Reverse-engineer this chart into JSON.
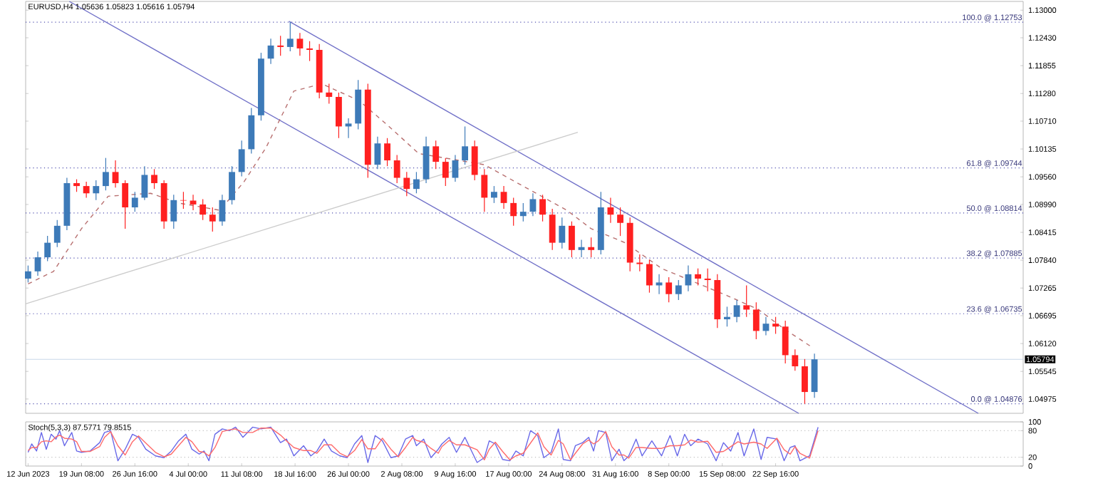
{
  "chart_data": [
    {
      "type": "candlestick",
      "title": "EURUSD,H4  1.05636 1.05823 1.05616 1.05794",
      "x": [
        "2023-06-12T00:00",
        "2023-06-13T08:00",
        "2023-06-14T16:00",
        "2023-06-16T00:00",
        "2023-06-17T08:00",
        "2023-06-18T16:00",
        "2023-06-20T00:00",
        "2023-06-21T08:00",
        "2023-06-22T16:00",
        "2023-06-24T00:00",
        "2023-06-25T08:00",
        "2023-06-26T16:00",
        "2023-06-28T00:00",
        "2023-06-29T08:00",
        "2023-06-30T16:00",
        "2023-07-02T00:00",
        "2023-07-03T08:00",
        "2023-07-04T16:00",
        "2023-07-06T00:00",
        "2023-07-07T08:00",
        "2023-07-08T16:00",
        "2023-07-10T00:00",
        "2023-07-11T08:00",
        "2023-07-12T16:00",
        "2023-07-14T00:00",
        "2023-07-15T08:00",
        "2023-07-16T16:00",
        "2023-07-18T00:00",
        "2023-07-19T08:00",
        "2023-07-20T16:00",
        "2023-07-22T00:00",
        "2023-07-23T08:00",
        "2023-07-24T16:00",
        "2023-07-26T00:00",
        "2023-07-27T08:00",
        "2023-07-28T16:00",
        "2023-07-30T00:00",
        "2023-07-31T08:00",
        "2023-08-01T16:00",
        "2023-08-03T00:00",
        "2023-08-04T08:00",
        "2023-08-05T16:00",
        "2023-08-07T00:00",
        "2023-08-08T08:00",
        "2023-08-09T16:00",
        "2023-08-11T00:00",
        "2023-08-12T08:00",
        "2023-08-13T16:00",
        "2023-08-15T00:00",
        "2023-08-16T08:00",
        "2023-08-17T16:00",
        "2023-08-19T00:00",
        "2023-08-20T08:00",
        "2023-08-21T16:00",
        "2023-08-23T00:00",
        "2023-08-24T08:00",
        "2023-08-25T16:00",
        "2023-08-27T00:00",
        "2023-08-28T08:00",
        "2023-08-29T16:00",
        "2023-08-31T00:00",
        "2023-09-01T08:00",
        "2023-09-02T16:00",
        "2023-09-04T00:00",
        "2023-09-05T08:00",
        "2023-09-06T16:00",
        "2023-09-08T00:00",
        "2023-09-09T08:00",
        "2023-09-10T16:00",
        "2023-09-12T00:00",
        "2023-09-13T08:00",
        "2023-09-14T16:00",
        "2023-09-16T00:00",
        "2023-09-17T08:00",
        "2023-09-18T16:00",
        "2023-09-20T00:00",
        "2023-09-21T08:00",
        "2023-09-22T16:00",
        "2023-09-24T00:00",
        "2023-09-25T08:00",
        "2023-09-26T16:00",
        "2023-09-28T00:00"
      ],
      "ohlc": [
        [
          1.0746,
          1.0773,
          1.0738,
          1.0761
        ],
        [
          1.0761,
          1.0802,
          1.0752,
          1.079
        ],
        [
          1.079,
          1.0834,
          1.0782,
          1.082
        ],
        [
          1.082,
          1.0867,
          1.0811,
          1.0855
        ],
        [
          1.0855,
          1.0954,
          1.0846,
          1.0943
        ],
        [
          1.0943,
          1.0951,
          1.0925,
          1.0937
        ],
        [
          1.0937,
          1.0946,
          1.0913,
          1.0922
        ],
        [
          1.0922,
          1.0949,
          1.0908,
          1.0937
        ],
        [
          1.0937,
          1.0995,
          1.0928,
          1.0966
        ],
        [
          1.0966,
          1.099,
          1.0934,
          1.0943
        ],
        [
          1.0943,
          1.0949,
          1.0849,
          1.0893
        ],
        [
          1.0893,
          1.0925,
          1.0884,
          1.0913
        ],
        [
          1.0913,
          1.0978,
          1.0908,
          1.096
        ],
        [
          1.096,
          1.0972,
          1.0931,
          1.0943
        ],
        [
          1.0943,
          1.0949,
          1.0849,
          1.0864
        ],
        [
          1.0864,
          1.0919,
          1.0849,
          1.0908
        ],
        [
          1.0908,
          1.0925,
          1.089,
          1.0907
        ],
        [
          1.0907,
          1.0919,
          1.0887,
          1.0899
        ],
        [
          1.0899,
          1.091,
          1.0867,
          1.0878
        ],
        [
          1.0878,
          1.0893,
          1.0843,
          1.0864
        ],
        [
          1.0864,
          1.0919,
          1.0855,
          1.0908
        ],
        [
          1.0908,
          1.0978,
          1.0899,
          1.0966
        ],
        [
          1.0966,
          1.1031,
          1.0957,
          1.1013
        ],
        [
          1.1013,
          1.1098,
          1.1004,
          1.1083
        ],
        [
          1.1083,
          1.1212,
          1.1072,
          1.12
        ],
        [
          1.12,
          1.1241,
          1.1189,
          1.1227
        ],
        [
          1.1227,
          1.1247,
          1.1206,
          1.1224
        ],
        [
          1.1224,
          1.12753,
          1.1215,
          1.1241
        ],
        [
          1.1241,
          1.1253,
          1.1206,
          1.1221
        ],
        [
          1.1221,
          1.1236,
          1.1195,
          1.1218
        ],
        [
          1.1218,
          1.123,
          1.1118,
          1.113
        ],
        [
          1.113,
          1.1148,
          1.1107,
          1.1121
        ],
        [
          1.1121,
          1.113,
          1.1036,
          1.106
        ],
        [
          1.106,
          1.1077,
          1.1036,
          1.1066
        ],
        [
          1.1066,
          1.1156,
          1.1054,
          1.1136
        ],
        [
          1.1136,
          1.1148,
          1.0954,
          1.0981
        ],
        [
          1.0981,
          1.1039,
          1.0972,
          1.1025
        ],
        [
          1.1025,
          1.1036,
          1.0978,
          1.099
        ],
        [
          1.099,
          1.1001,
          1.0943,
          1.0954
        ],
        [
          1.0954,
          1.0966,
          1.0916,
          1.0931
        ],
        [
          1.0931,
          1.0966,
          1.0922,
          1.0951
        ],
        [
          1.0951,
          1.1039,
          1.0943,
          1.1019
        ],
        [
          1.1019,
          1.1031,
          1.0972,
          1.0987
        ],
        [
          1.0987,
          1.0995,
          1.0937,
          1.0954
        ],
        [
          1.0954,
          1.1001,
          1.0946,
          1.099
        ],
        [
          1.099,
          1.106,
          1.0981,
          1.1019
        ],
        [
          1.1019,
          1.1031,
          1.0949,
          1.096
        ],
        [
          1.096,
          1.0972,
          1.0884,
          1.0913
        ],
        [
          1.0913,
          1.0937,
          1.0902,
          1.0925
        ],
        [
          1.0925,
          1.0937,
          1.089,
          1.0902
        ],
        [
          1.0902,
          1.0913,
          1.0855,
          1.0875
        ],
        [
          1.0875,
          1.0902,
          1.0864,
          1.0884
        ],
        [
          1.0884,
          1.0922,
          1.0875,
          1.091
        ],
        [
          1.091,
          1.0919,
          1.0864,
          1.0878
        ],
        [
          1.0878,
          1.089,
          1.0805,
          1.082
        ],
        [
          1.082,
          1.0872,
          1.0808,
          1.0855
        ],
        [
          1.0855,
          1.0864,
          1.079,
          1.0805
        ],
        [
          1.0805,
          1.0826,
          1.079,
          1.0811
        ],
        [
          1.0811,
          1.0831,
          1.079,
          1.0805
        ],
        [
          1.0805,
          1.0925,
          1.0796,
          1.0893
        ],
        [
          1.0893,
          1.0913,
          1.0861,
          1.0878
        ],
        [
          1.0878,
          1.0893,
          1.0834,
          1.0861
        ],
        [
          1.0861,
          1.0872,
          1.0761,
          1.0779
        ],
        [
          1.0779,
          1.0796,
          1.0761,
          1.0776
        ],
        [
          1.0776,
          1.0785,
          1.0717,
          1.0732
        ],
        [
          1.0732,
          1.0755,
          1.0714,
          1.0738
        ],
        [
          1.0738,
          1.0749,
          1.0697,
          1.0714
        ],
        [
          1.0714,
          1.0743,
          1.0702,
          1.0732
        ],
        [
          1.0732,
          1.0773,
          1.072,
          1.0755
        ],
        [
          1.0755,
          1.0767,
          1.0732,
          1.0746
        ],
        [
          1.0746,
          1.0767,
          1.072,
          1.0743
        ],
        [
          1.0743,
          1.0755,
          1.0644,
          1.0662
        ],
        [
          1.0662,
          1.0688,
          1.0647,
          1.0667
        ],
        [
          1.0667,
          1.0702,
          1.0656,
          1.0691
        ],
        [
          1.0691,
          1.0732,
          1.0667,
          1.0682
        ],
        [
          1.0682,
          1.0697,
          1.0621,
          1.0638
        ],
        [
          1.0638,
          1.0667,
          1.0629,
          1.0653
        ],
        [
          1.0653,
          1.0667,
          1.0632,
          1.0647
        ],
        [
          1.0647,
          1.0659,
          1.0571,
          1.0588
        ],
        [
          1.0588,
          1.06,
          1.0556,
          1.0565
        ],
        [
          1.0565,
          1.058,
          1.04876,
          1.0512
        ],
        [
          1.0512,
          1.0591,
          1.05,
          1.05794
        ]
      ],
      "colors": [
        "#3d7ab8",
        "#3d7ab8",
        "#3d7ab8",
        "#3d7ab8",
        "#3d7ab8",
        "#ff2020",
        "#ff2020",
        "#3d7ab8",
        "#3d7ab8",
        "#ff2020",
        "#ff2020",
        "#3d7ab8",
        "#3d7ab8",
        "#ff2020",
        "#ff2020",
        "#3d7ab8",
        "#ff2020",
        "#ff2020",
        "#ff2020",
        "#ff2020",
        "#3d7ab8",
        "#3d7ab8",
        "#3d7ab8",
        "#3d7ab8",
        "#3d7ab8",
        "#3d7ab8",
        "#ff2020",
        "#3d7ab8",
        "#ff2020",
        "#ff2020",
        "#ff2020",
        "#ff2020",
        "#ff2020",
        "#3d7ab8",
        "#3d7ab8",
        "#ff2020",
        "#3d7ab8",
        "#ff2020",
        "#ff2020",
        "#ff2020",
        "#3d7ab8",
        "#3d7ab8",
        "#ff2020",
        "#ff2020",
        "#3d7ab8",
        "#3d7ab8",
        "#ff2020",
        "#ff2020",
        "#3d7ab8",
        "#ff2020",
        "#ff2020",
        "#3d7ab8",
        "#3d7ab8",
        "#ff2020",
        "#ff2020",
        "#3d7ab8",
        "#ff2020",
        "#3d7ab8",
        "#ff2020",
        "#3d7ab8",
        "#ff2020",
        "#ff2020",
        "#ff2020",
        "#ff2020",
        "#ff2020",
        "#3d7ab8",
        "#ff2020",
        "#3d7ab8",
        "#3d7ab8",
        "#ff2020",
        "#ff2020",
        "#ff2020",
        "#3d7ab8",
        "#3d7ab8",
        "#ff2020",
        "#ff2020",
        "#3d7ab8",
        "#ff2020",
        "#ff2020",
        "#ff2020",
        "#ff2020",
        "#3d7ab8"
      ],
      "series": [
        {
          "type": "line",
          "color": "#7070c8",
          "x": [
            "2023-06-17T16:00",
            "2023-09-25T20:00"
          ],
          "values": [
            1.1318,
            1.0468
          ]
        },
        {
          "type": "line",
          "color": "#7070c8",
          "x": [
            "2023-07-17T20:00",
            "2023-10-20T12:00"
          ],
          "values": [
            1.1277,
            1.0468
          ]
        },
        {
          "type": "line",
          "color": "#cccccc",
          "x": [
            "2023-06-11T16:00",
            "2023-08-26T12:00"
          ],
          "values": [
            1.0694,
            1.1048
          ]
        },
        {
          "type": "line",
          "color": "#b87070",
          "line_style": "dashed",
          "x": [
            "2023-06-12T00:00",
            "2023-06-15T12:00",
            "2023-06-19T08:00",
            "2023-06-23T00:00",
            "2023-06-28T20:00",
            "2023-07-02T16:00",
            "2023-07-08T08:00",
            "2023-07-11T16:00",
            "2023-07-14T16:00",
            "2023-07-18T12:00",
            "2023-07-22T08:00",
            "2023-07-27T12:00",
            "2023-07-31T08:00",
            "2023-08-04T16:00",
            "2023-08-13T16:00",
            "2023-08-25T00:00",
            "2023-08-28T08:00",
            "2023-09-02T00:00",
            "2023-09-07T00:00",
            "2023-09-16T00:00",
            "2023-09-20T08:00",
            "2023-09-23T16:00",
            "2023-09-27T12:00"
          ],
          "values": [
            1.0735,
            1.0761,
            1.0849,
            1.0916,
            1.0922,
            1.0902,
            1.0887,
            1.0946,
            1.1016,
            1.1133,
            1.1148,
            1.1113,
            1.1063,
            1.1004,
            1.0981,
            1.0887,
            1.0849,
            1.082,
            1.0767,
            1.0711,
            1.0682,
            1.0644,
            1.0606
          ]
        }
      ],
      "ref_lines": [
        {
          "axis": "y",
          "value": 1.12753,
          "label": "100.0 @ 1.12753",
          "color": "#5050b0",
          "line_style": "dotted"
        },
        {
          "axis": "y",
          "value": 1.09744,
          "label": "61.8 @ 1.09744",
          "color": "#5050b0",
          "line_style": "dotted"
        },
        {
          "axis": "y",
          "value": 1.08814,
          "label": "50.0 @ 1.08814",
          "color": "#5050b0",
          "line_style": "dotted"
        },
        {
          "axis": "y",
          "value": 1.07885,
          "label": "38.2 @ 1.07885",
          "color": "#5050b0",
          "line_style": "dotted"
        },
        {
          "axis": "y",
          "value": 1.06735,
          "label": "23.6 @ 1.06735",
          "color": "#5050b0",
          "line_style": "dotted"
        },
        {
          "axis": "y",
          "value": 1.04876,
          "label": "0.0 @ 1.04876",
          "color": "#5050b0",
          "line_style": "dotted"
        },
        {
          "axis": "y",
          "value": 1.05794,
          "label": "1.05794",
          "color": "#c8d8e8",
          "line_style": "solid"
        }
      ],
      "xlim": [
        "2023-06-11T16:00",
        "2023-10-26T16:00"
      ],
      "ylim": [
        1.0468,
        1.1318
      ],
      "yticks": [
        {
          "value": 1.13,
          "label": "1.13000"
        },
        {
          "value": 1.1243,
          "label": "1.12430"
        },
        {
          "value": 1.11855,
          "label": "1.11855"
        },
        {
          "value": 1.1128,
          "label": "1.11280"
        },
        {
          "value": 1.1071,
          "label": "1.10710"
        },
        {
          "value": 1.10135,
          "label": "1.10135"
        },
        {
          "value": 1.0956,
          "label": "1.09560"
        },
        {
          "value": 1.0899,
          "label": "1.08990"
        },
        {
          "value": 1.08415,
          "label": "1.08415"
        },
        {
          "value": 1.0784,
          "label": "1.07840"
        },
        {
          "value": 1.07265,
          "label": "1.07265"
        },
        {
          "value": 1.06695,
          "label": "1.06695"
        },
        {
          "value": 1.0612,
          "label": "1.06120"
        },
        {
          "value": 1.05545,
          "label": "1.05545"
        },
        {
          "value": 1.04975,
          "label": "1.04975"
        }
      ],
      "tick_labels": "y"
    },
    {
      "type": "line",
      "title": "Stoch(5,3,3) 87.5771 79.8515",
      "x": [
        "2023-06-12T00:00",
        "2023-06-12T12:00",
        "2023-06-13T04:00",
        "2023-06-13T20:00",
        "2023-06-14T12:00",
        "2023-06-15T04:00",
        "2023-06-15T20:00",
        "2023-06-16T08:00",
        "2023-06-17T00:00",
        "2023-06-18T00:00",
        "2023-06-18T16:00",
        "2023-06-19T08:00",
        "2023-06-20T12:00",
        "2023-06-21T20:00",
        "2023-06-22T12:00",
        "2023-06-23T08:00",
        "2023-06-24T08:00",
        "2023-06-25T08:00",
        "2023-06-26T08:00",
        "2023-06-27T04:00",
        "2023-06-28T04:00",
        "2023-06-29T12:00",
        "2023-06-30T16:00",
        "2023-07-01T16:00",
        "2023-07-02T16:00",
        "2023-07-03T16:00",
        "2023-07-04T12:00",
        "2023-07-05T12:00",
        "2023-07-06T04:00",
        "2023-07-06T20:00",
        "2023-07-07T16:00",
        "2023-07-08T16:00",
        "2023-07-09T16:00",
        "2023-07-10T12:00",
        "2023-07-11T12:00",
        "2023-07-12T20:00",
        "2023-07-14T00:00",
        "2023-07-15T08:00",
        "2023-07-16T16:00",
        "2023-07-17T12:00",
        "2023-07-18T12:00",
        "2023-07-19T20:00",
        "2023-07-20T20:00",
        "2023-07-21T16:00",
        "2023-07-22T16:00",
        "2023-07-23T16:00",
        "2023-07-24T20:00",
        "2023-07-25T20:00",
        "2023-07-26T20:00",
        "2023-07-27T20:00",
        "2023-07-28T16:00",
        "2023-07-29T16:00",
        "2023-07-30T16:00",
        "2023-07-31T20:00",
        "2023-08-01T20:00",
        "2023-08-02T20:00",
        "2023-08-03T20:00",
        "2023-08-04T08:00",
        "2023-08-05T08:00",
        "2023-08-06T08:00",
        "2023-08-07T08:00",
        "2023-08-07T20:00",
        "2023-08-08T20:00",
        "2023-08-09T20:00",
        "2023-08-11T00:00",
        "2023-08-12T16:00",
        "2023-08-13T16:00",
        "2023-08-14T08:00",
        "2023-08-15T04:00",
        "2023-08-16T04:00",
        "2023-08-17T04:00",
        "2023-08-18T00:00",
        "2023-08-19T00:00",
        "2023-08-20T00:00",
        "2023-08-21T00:00",
        "2023-08-21T20:00",
        "2023-08-22T20:00",
        "2023-08-23T20:00",
        "2023-08-24T12:00",
        "2023-08-25T12:00",
        "2023-08-26T04:00",
        "2023-08-27T04:00",
        "2023-08-28T00:00",
        "2023-08-28T16:00",
        "2023-08-29T08:00",
        "2023-08-30T08:00",
        "2023-08-31T04:00",
        "2023-09-01T04:00",
        "2023-09-01T20:00",
        "2023-09-02T12:00",
        "2023-09-03T12:00",
        "2023-09-04T08:00",
        "2023-09-05T16:00",
        "2023-09-07T00:00",
        "2023-09-08T04:00",
        "2023-09-09T04:00",
        "2023-09-10T04:00",
        "2023-09-11T00:00",
        "2023-09-12T00:00",
        "2023-09-13T08:00",
        "2023-09-14T12:00",
        "2023-09-15T12:00",
        "2023-09-16T12:00",
        "2023-09-17T12:00",
        "2023-09-18T08:00",
        "2023-09-19T16:00",
        "2023-09-20T16:00",
        "2023-09-21T12:00",
        "2023-09-22T20:00",
        "2023-09-23T20:00",
        "2023-09-24T16:00",
        "2023-09-25T08:00",
        "2023-09-26T00:00",
        "2023-09-27T08:00",
        "2023-09-28T12:00"
      ],
      "series": [
        {
          "color": "#6868e8",
          "values": [
            31,
            50,
            34,
            76,
            38,
            72,
            61,
            80,
            46,
            76,
            34,
            31,
            34,
            53,
            76,
            80,
            12,
            38,
            72,
            65,
            38,
            23,
            19,
            34,
            57,
            72,
            38,
            27,
            34,
            12,
            72,
            84,
            80,
            88,
            65,
            88,
            84,
            88,
            53,
            61,
            23,
            46,
            23,
            34,
            61,
            34,
            23,
            19,
            50,
            69,
            8,
            69,
            57,
            19,
            23,
            61,
            69,
            46,
            61,
            19,
            38,
            50,
            65,
            31,
            65,
            8,
            19,
            57,
            50,
            15,
            12,
            34,
            23,
            80,
            69,
            19,
            31,
            84,
            15,
            12,
            46,
            53,
            65,
            34,
            80,
            76,
            12,
            38,
            12,
            23,
            61,
            23,
            57,
            23,
            69,
            23,
            72,
            46,
            61,
            50,
            12,
            53,
            34,
            76,
            23,
            84,
            15,
            65,
            61,
            12,
            42,
            46,
            12,
            23,
            88
          ]
        },
        {
          "color": "#ff6a6a",
          "values": [
            35,
            42,
            42,
            55,
            57,
            55,
            66,
            70,
            63,
            61,
            55,
            33,
            33,
            44,
            65,
            78,
            46,
            25,
            55,
            68,
            52,
            31,
            21,
            27,
            46,
            65,
            55,
            33,
            31,
            23,
            42,
            78,
            82,
            84,
            76,
            76,
            86,
            86,
            70,
            57,
            42,
            35,
            35,
            29,
            48,
            48,
            29,
            21,
            35,
            60,
            39,
            39,
            63,
            38,
            21,
            42,
            65,
            58,
            54,
            40,
            29,
            44,
            58,
            48,
            48,
            37,
            14,
            38,
            54,
            33,
            14,
            23,
            29,
            52,
            75,
            44,
            25,
            58,
            50,
            14,
            29,
            50,
            59,
            50,
            57,
            78,
            44,
            25,
            25,
            18,
            42,
            42,
            40,
            40,
            46,
            46,
            48,
            59,
            54,
            56,
            31,
            33,
            44,
            55,
            50,
            54,
            50,
            40,
            63,
            37,
            27,
            44,
            29,
            18,
            80
          ]
        }
      ],
      "ref_lines": [
        {
          "axis": "y",
          "value": 80,
          "color": "#c0c0c0",
          "line_style": "dotted"
        },
        {
          "axis": "y",
          "value": 20,
          "color": "#c0c0c0",
          "line_style": "dotted"
        }
      ],
      "xlim": [
        "2023-06-11T16:00",
        "2023-10-26T16:00"
      ],
      "ylim": [
        0,
        100
      ],
      "xticks": [
        {
          "value": "2023-06-12T00:00",
          "label": "12 Jun 2023"
        },
        {
          "value": "2023-06-19T08:00",
          "label": "19 Jun 08:00"
        },
        {
          "value": "2023-06-26T16:00",
          "label": "26 Jun 16:00"
        },
        {
          "value": "2023-07-04T00:00",
          "label": "4 Jul 00:00"
        },
        {
          "value": "2023-07-11T08:00",
          "label": "11 Jul 08:00"
        },
        {
          "value": "2023-07-18T16:00",
          "label": "18 Jul 16:00"
        },
        {
          "value": "2023-07-26T00:00",
          "label": "26 Jul 00:00"
        },
        {
          "value": "2023-08-02T08:00",
          "label": "2 Aug 08:00"
        },
        {
          "value": "2023-08-09T16:00",
          "label": "9 Aug 16:00"
        },
        {
          "value": "2023-08-17T00:00",
          "label": "17 Aug 00:00"
        },
        {
          "value": "2023-08-24T08:00",
          "label": "24 Aug 08:00"
        },
        {
          "value": "2023-08-31T16:00",
          "label": "31 Aug 16:00"
        },
        {
          "value": "2023-09-08T00:00",
          "label": "8 Sep 00:00"
        },
        {
          "value": "2023-09-15T08:00",
          "label": "15 Sep 08:00"
        },
        {
          "value": "2023-09-22T16:00",
          "label": "22 Sep 16:00"
        }
      ],
      "yticks": [
        0,
        20,
        80,
        100
      ]
    }
  ]
}
